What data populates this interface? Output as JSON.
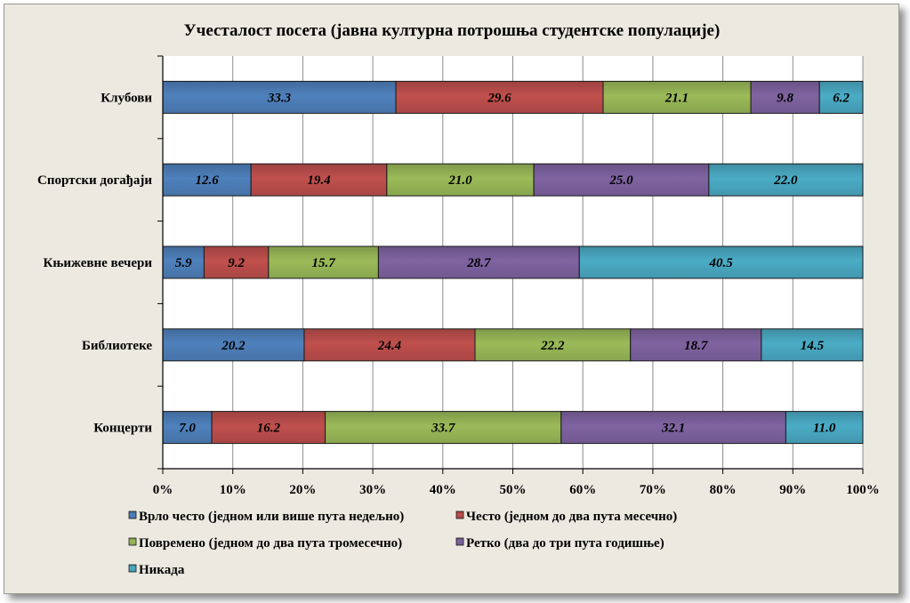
{
  "chart_data": {
    "type": "bar",
    "orientation": "horizontal",
    "stacked": true,
    "percent_stacked": true,
    "title": "Учесталост  посета  (јавна  културна  потрошња  студентске  популације)",
    "categories": [
      "Клубови",
      "Спортски догађаји",
      "Књижевне вечери",
      "Библиотеке",
      "Концерти"
    ],
    "series": [
      {
        "name": "Врло често (једном или више пута недељно)",
        "color": "#4f81bd",
        "values": [
          33.3,
          12.6,
          5.9,
          20.2,
          7.0
        ]
      },
      {
        "name": "Често (једном до два пута месечно)",
        "color": "#c0504d",
        "values": [
          29.6,
          19.4,
          9.2,
          24.4,
          16.2
        ]
      },
      {
        "name": "Повремено (једном до два пута тромесечно)",
        "color": "#9bbb59",
        "values": [
          21.1,
          21.0,
          15.7,
          22.2,
          33.7
        ]
      },
      {
        "name": "Ретко (два до три пута  годишње)",
        "color": "#8064a2",
        "values": [
          9.8,
          25.0,
          28.7,
          18.7,
          32.1
        ]
      },
      {
        "name": "Никада",
        "color": "#4bacc6",
        "values": [
          6.2,
          22.0,
          40.5,
          14.5,
          11.0
        ]
      }
    ],
    "xlim": [
      0,
      100
    ],
    "x_ticks": [
      "0%",
      "10%",
      "20%",
      "30%",
      "40%",
      "50%",
      "60%",
      "70%",
      "80%",
      "90%",
      "100%"
    ],
    "grid": true,
    "legend_position": "bottom"
  }
}
